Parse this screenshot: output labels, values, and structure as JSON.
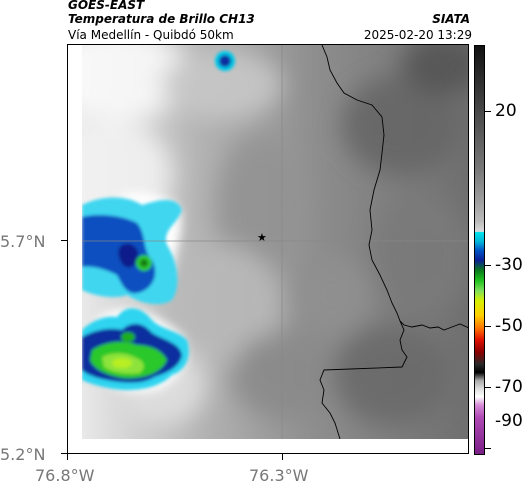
{
  "header": {
    "satellite": "GOES-EAST",
    "product": "Temperatura de Brillo CH13",
    "region": "Vía Medellín - Quibdó 50km",
    "agency": "SIATA",
    "datetime": "2025-02-20 13:29"
  },
  "axes": {
    "y_labels": [
      "5.7°N",
      "5.2°N"
    ],
    "x_labels": [
      "76.8°W",
      "76.3°W"
    ]
  },
  "colorbar": {
    "labels": [
      "20",
      "-30",
      "-50",
      "-70",
      "-90"
    ]
  },
  "marker": {
    "icon": "star-icon"
  }
}
